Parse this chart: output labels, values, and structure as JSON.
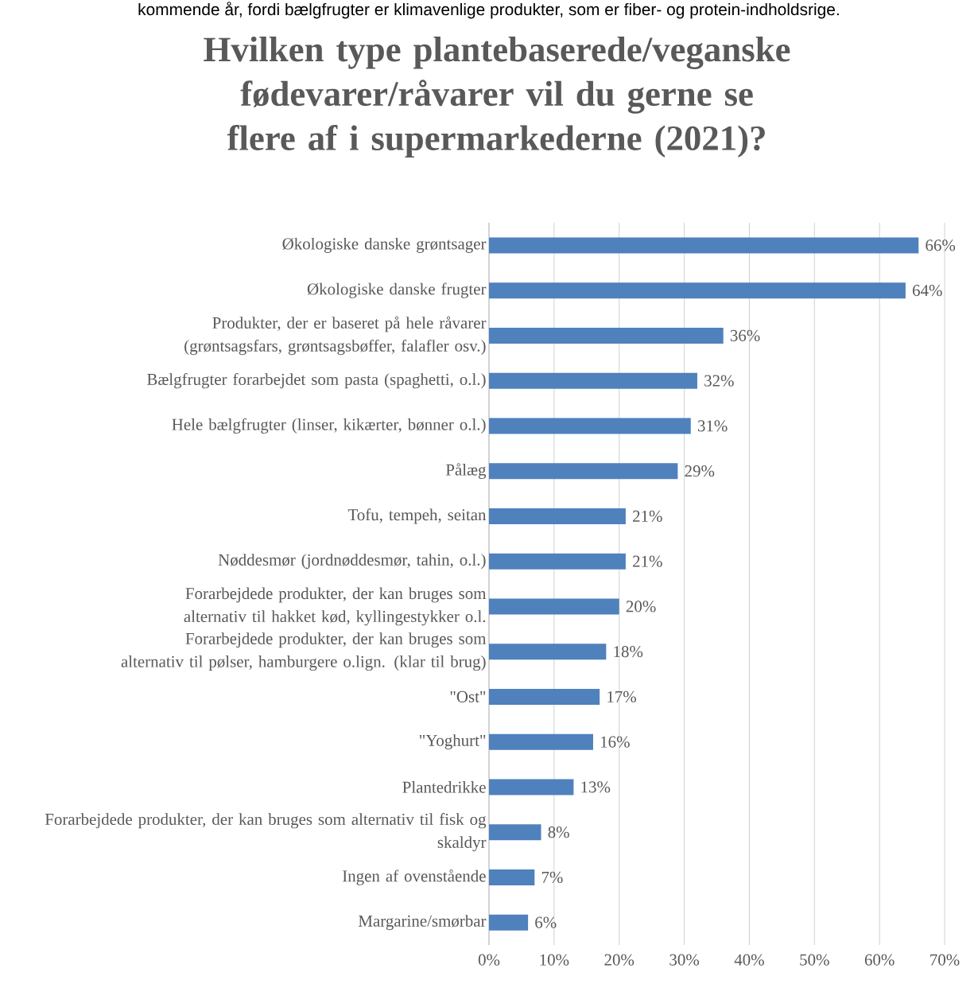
{
  "chart_data": {
    "type": "bar",
    "orientation": "horizontal",
    "title": "Hvilken type plantebaserede/veganske fødevarer/råvarer vil du gerne se flere af i supermarkederne (2021)?",
    "annotations": [
      "kommende år, fordi bælgfrugter er klimavenlige produkter, som er fiber- og protein-indholdsrige."
    ],
    "categories": [
      "Økologiske danske grøntsager",
      "Økologiske danske frugter",
      "Produkter, der er baseret på hele råvarer (grøntsagsfars, grøntsagsbøffer, falafler osv.)",
      "Bælgfrugter forarbejdet som pasta (spaghetti, o.l.)",
      "Hele bælgfrugter (linser, kikærter, bønner o.l.)",
      "Pålæg",
      "Tofu, tempeh, seitan",
      "Nøddesmør (jordnøddesmør, tahin, o.l.)",
      "Forarbejdede produkter, der kan bruges som alternativ til hakket kød, kyllingestykker o.l.",
      "Forarbejdede produkter, der kan bruges som alternativ til pølser, hamburgere o.lign. (klar til brug)",
      "\"Ost\"",
      "\"Yoghurt\"",
      "Plantedrikke",
      "Forarbejdede produkter, der kan bruges som alternativ til fisk og skaldyr",
      "Ingen af ovenstående",
      "Margarine/smørbar"
    ],
    "values": [
      66,
      64,
      36,
      32,
      31,
      29,
      21,
      21,
      20,
      18,
      17,
      16,
      13,
      8,
      7,
      6
    ],
    "value_labels": [
      "66%",
      "64%",
      "36%",
      "32%",
      "31%",
      "29%",
      "21%",
      "21%",
      "20%",
      "18%",
      "17%",
      "16%",
      "13%",
      "8%",
      "7%",
      "6%"
    ],
    "color": "#4f81bd",
    "xlim": [
      0,
      70
    ],
    "xticks": [
      {
        "value": 0,
        "label": "0%"
      },
      {
        "value": 10,
        "label": "10%"
      },
      {
        "value": 20,
        "label": "20%"
      },
      {
        "value": 30,
        "label": "30%"
      },
      {
        "value": 40,
        "label": "40%"
      },
      {
        "value": 50,
        "label": "50%"
      },
      {
        "value": 60,
        "label": "60%"
      },
      {
        "value": 70,
        "label": "70%"
      }
    ],
    "grid": "x"
  }
}
